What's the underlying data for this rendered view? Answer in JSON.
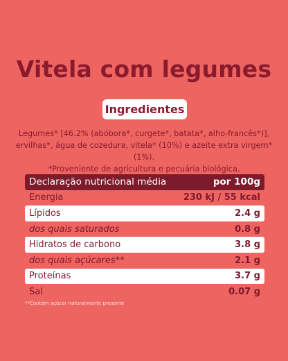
{
  "title": "Vitela com legumes",
  "section_label": "Ingredientes",
  "ingredients": [
    "Legumes* [46.2% (abóbora*, curgete*, batata*, alho-francês*)],",
    "ervilhas*, água de cozedura, vitela* (10%) e azeite extra virgem* (1%).",
    "*Proveniente de agricultura e pecuária biológica."
  ],
  "table": {
    "header": [
      "Declaração nutricional média",
      "por 100g"
    ],
    "rows": [
      {
        "label": "Energia",
        "value": "230 kJ / 55 kcal"
      },
      {
        "label": "Lípidos",
        "value": "2.4 g"
      },
      {
        "label": "dos quais saturados",
        "value": "0.8 g",
        "italic": true
      },
      {
        "label": "Hidratos de carbono",
        "value": "3.8 g"
      },
      {
        "label": "dos quais açúcares**",
        "value": "2.1 g",
        "italic": true
      },
      {
        "label": "Proteínas",
        "value": "3.7 g"
      },
      {
        "label": "Sal",
        "value": "0.07 g"
      }
    ]
  },
  "footnote": "**Contém açúcar naturalmente presente"
}
